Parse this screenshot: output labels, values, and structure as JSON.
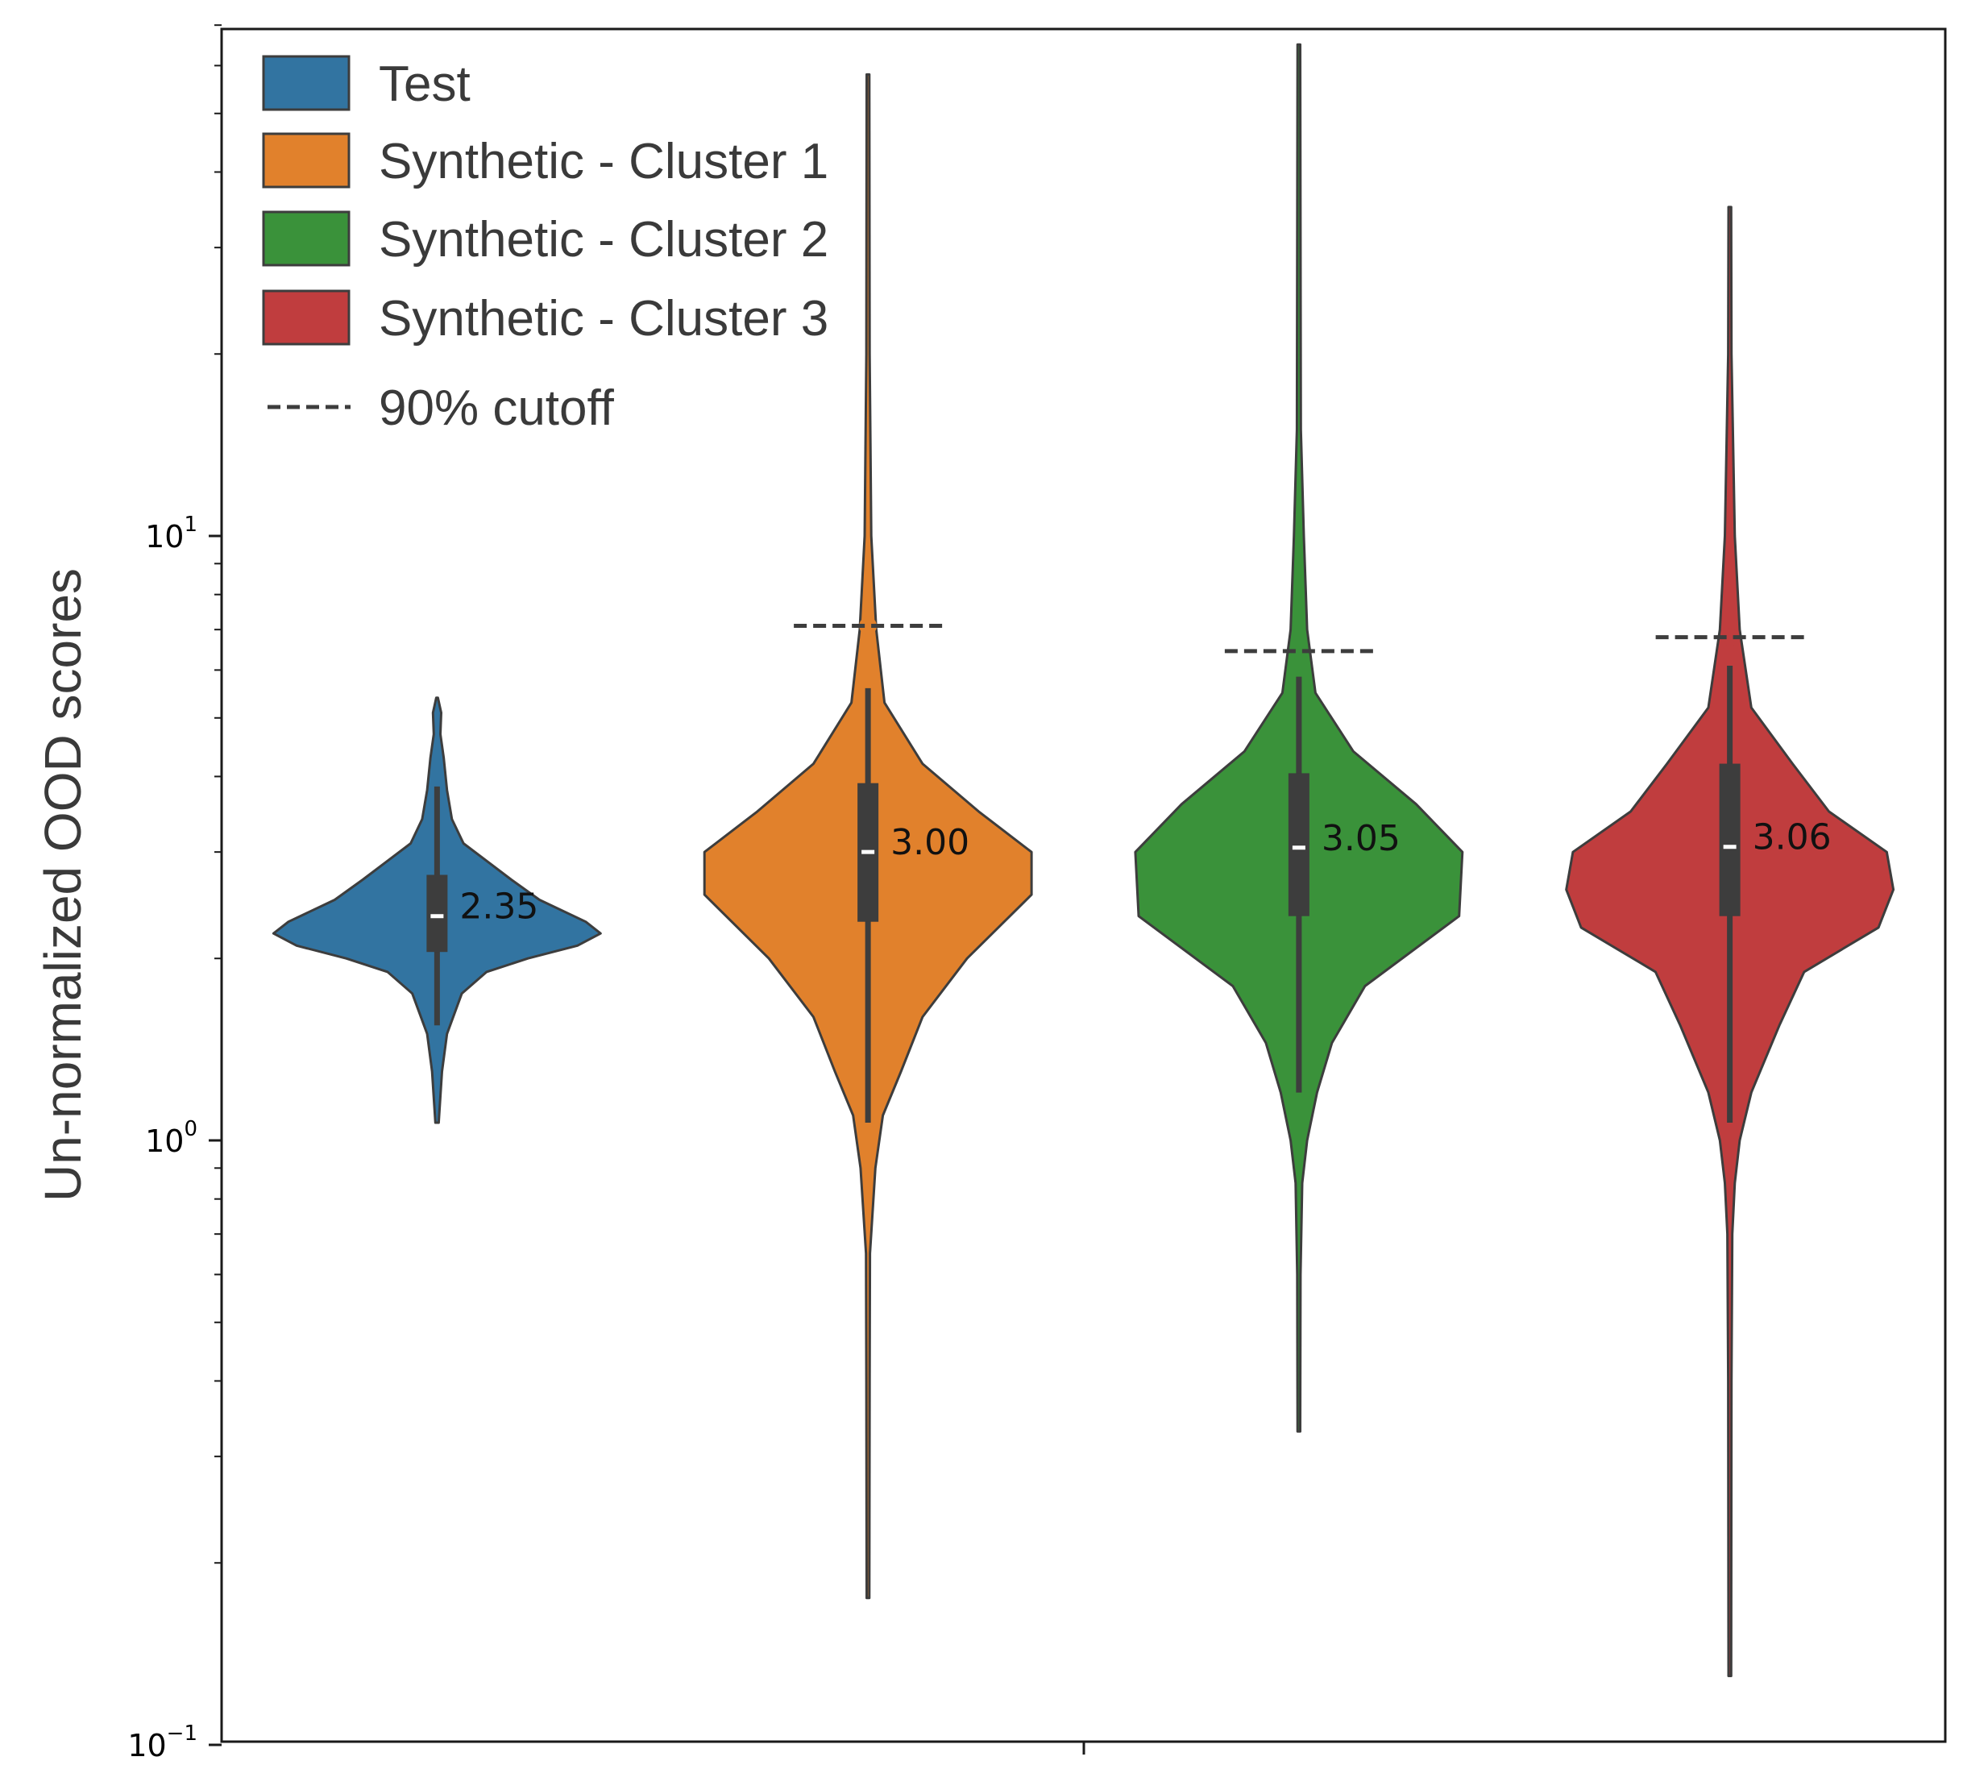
{
  "chart_data": {
    "type": "violin",
    "title": "",
    "xlabel": "",
    "ylabel": "Un-normalized OOD scores",
    "yscale": "log",
    "ylim": [
      0.1,
      90
    ],
    "y_ticks": [
      {
        "value": 0.1,
        "base": "10",
        "exp": "−1"
      },
      {
        "value": 1,
        "base": "10",
        "exp": "0"
      },
      {
        "value": 10,
        "base": "10",
        "exp": "1"
      }
    ],
    "grid": false,
    "legend_position": "top-left",
    "cutoff_legend_label": "90% cutoff",
    "series": [
      {
        "name": "Test",
        "color": "#3274a1",
        "median": 2.35,
        "median_label": "2.35",
        "q1": 2.05,
        "q3": 2.75,
        "whisker_low": 1.55,
        "whisker_high": 3.85,
        "min": 1.07,
        "max": 5.4,
        "cutoff": null,
        "density": [
          [
            1.07,
            0.01
          ],
          [
            1.3,
            0.03
          ],
          [
            1.5,
            0.06
          ],
          [
            1.75,
            0.15
          ],
          [
            1.9,
            0.3
          ],
          [
            2.0,
            0.55
          ],
          [
            2.1,
            0.85
          ],
          [
            2.2,
            0.99
          ],
          [
            2.3,
            0.9
          ],
          [
            2.5,
            0.62
          ],
          [
            2.7,
            0.45
          ],
          [
            2.9,
            0.3
          ],
          [
            3.1,
            0.16
          ],
          [
            3.4,
            0.09
          ],
          [
            3.8,
            0.06
          ],
          [
            4.3,
            0.04
          ],
          [
            4.7,
            0.02
          ],
          [
            5.1,
            0.025
          ],
          [
            5.4,
            0.005
          ]
        ]
      },
      {
        "name": "Synthetic - Cluster 1",
        "color": "#e1812c",
        "median": 3.0,
        "median_label": "3.00",
        "q1": 2.3,
        "q3": 3.9,
        "whisker_low": 1.07,
        "whisker_high": 5.6,
        "min": 0.175,
        "max": 58,
        "cutoff": 7.1,
        "density": [
          [
            0.175,
            0.008
          ],
          [
            0.4,
            0.01
          ],
          [
            0.65,
            0.012
          ],
          [
            0.9,
            0.045
          ],
          [
            1.1,
            0.09
          ],
          [
            1.3,
            0.2
          ],
          [
            1.6,
            0.33
          ],
          [
            2.0,
            0.6
          ],
          [
            2.55,
            0.99
          ],
          [
            3.0,
            0.99
          ],
          [
            3.5,
            0.67
          ],
          [
            4.2,
            0.33
          ],
          [
            5.3,
            0.1
          ],
          [
            7.0,
            0.05
          ],
          [
            10,
            0.02
          ],
          [
            20,
            0.01
          ],
          [
            58,
            0.008
          ]
        ]
      },
      {
        "name": "Synthetic - Cluster 2",
        "color": "#3a923a",
        "median": 3.05,
        "median_label": "3.05",
        "q1": 2.35,
        "q3": 4.05,
        "whisker_low": 1.2,
        "whisker_high": 5.85,
        "min": 0.33,
        "max": 65,
        "cutoff": 6.45,
        "density": [
          [
            0.33,
            0.008
          ],
          [
            0.6,
            0.01
          ],
          [
            0.85,
            0.02
          ],
          [
            1.0,
            0.05
          ],
          [
            1.2,
            0.11
          ],
          [
            1.45,
            0.2
          ],
          [
            1.8,
            0.4
          ],
          [
            2.35,
            0.97
          ],
          [
            3.0,
            0.99
          ],
          [
            3.6,
            0.71
          ],
          [
            4.4,
            0.33
          ],
          [
            5.5,
            0.1
          ],
          [
            7.0,
            0.05
          ],
          [
            10,
            0.03
          ],
          [
            15,
            0.012
          ],
          [
            65,
            0.008
          ]
        ]
      },
      {
        "name": "Synthetic - Cluster 3",
        "color": "#c03d3e",
        "median": 3.06,
        "median_label": "3.06",
        "q1": 2.35,
        "q3": 4.2,
        "whisker_low": 1.07,
        "whisker_high": 6.1,
        "min": 0.13,
        "max": 35,
        "cutoff": 6.8,
        "density": [
          [
            0.13,
            0.008
          ],
          [
            0.4,
            0.01
          ],
          [
            0.7,
            0.015
          ],
          [
            0.85,
            0.03
          ],
          [
            1.0,
            0.06
          ],
          [
            1.2,
            0.13
          ],
          [
            1.55,
            0.3
          ],
          [
            1.9,
            0.45
          ],
          [
            2.25,
            0.9
          ],
          [
            2.6,
            0.99
          ],
          [
            3.0,
            0.95
          ],
          [
            3.5,
            0.6
          ],
          [
            4.2,
            0.38
          ],
          [
            5.2,
            0.13
          ],
          [
            7.0,
            0.06
          ],
          [
            10,
            0.03
          ],
          [
            20,
            0.01
          ],
          [
            35,
            0.008
          ]
        ]
      }
    ]
  }
}
